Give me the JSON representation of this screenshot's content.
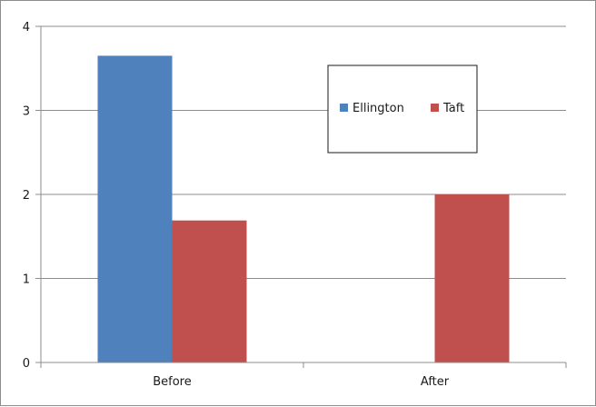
{
  "chart_data": {
    "type": "bar",
    "title": "",
    "xlabel": "",
    "ylabel": "",
    "categories": [
      "Before",
      "After"
    ],
    "series": [
      {
        "name": "Ellington",
        "values": [
          3.65,
          0
        ],
        "color": "#4f81bd"
      },
      {
        "name": "Taft",
        "values": [
          1.69,
          2.0
        ],
        "color": "#c0504d"
      }
    ],
    "ylim": [
      0,
      4
    ],
    "yticks": [
      "0",
      "1",
      "2",
      "3",
      "4"
    ],
    "grid": true,
    "legend": "top-right (inside plot)"
  }
}
